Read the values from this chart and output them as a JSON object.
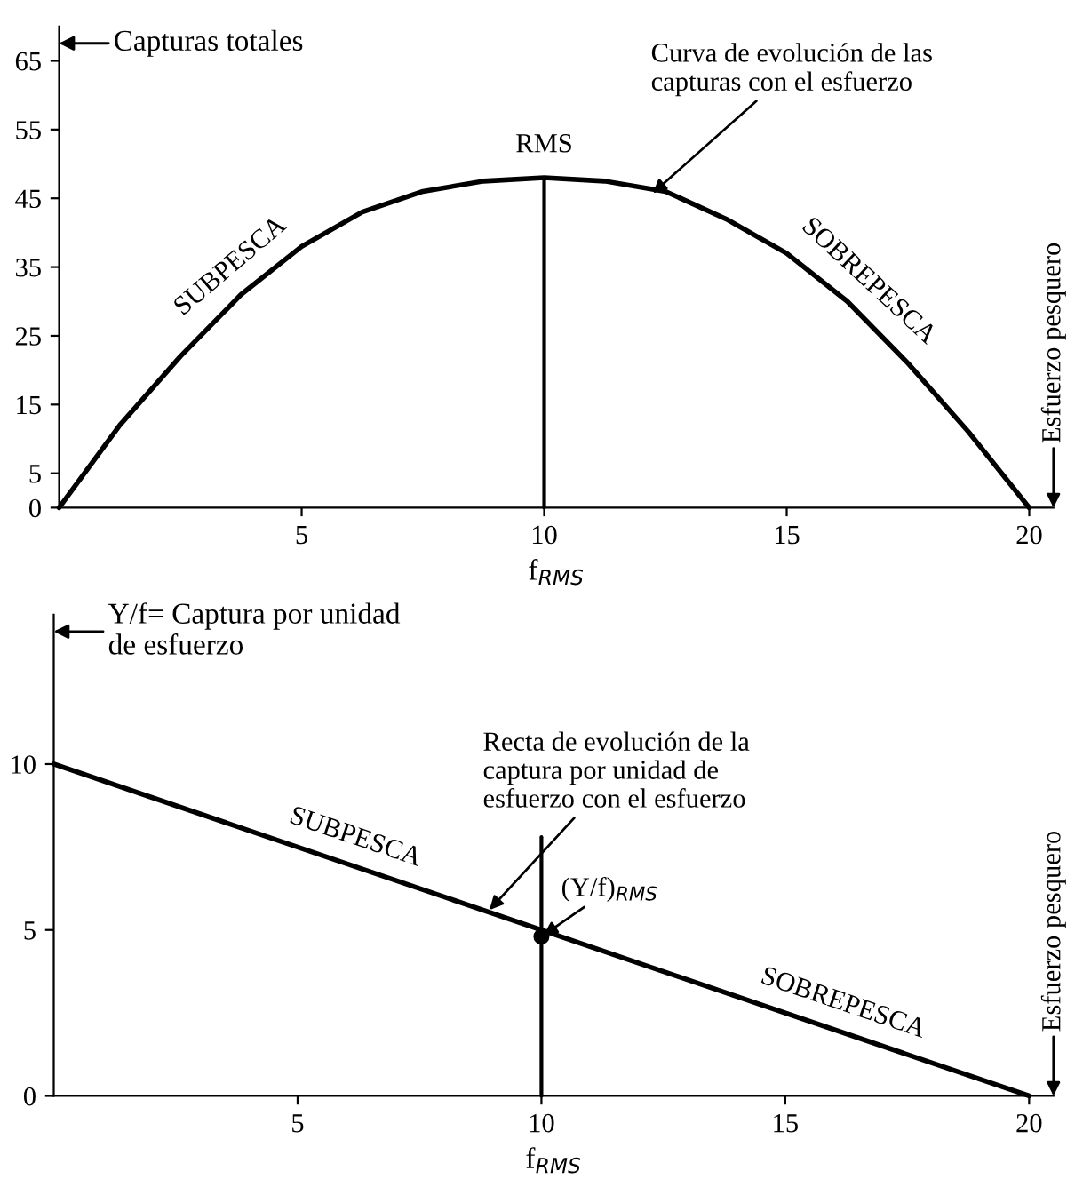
{
  "chart_data": [
    {
      "type": "line",
      "ylabel": "Capturas totales",
      "xlabel": "f$_{RMS}$",
      "series": [
        {
          "color": "#000000",
          "x": [
            0,
            1.25,
            2.5,
            3.75,
            5,
            6.25,
            7.5,
            8.75,
            10,
            11.25,
            12.5,
            13.75,
            15,
            16.25,
            17.5,
            18.75,
            20
          ],
          "values": [
            0,
            12,
            22,
            31,
            38,
            43,
            46,
            47.5,
            48,
            47.5,
            46,
            42,
            37,
            30,
            21,
            11,
            0
          ]
        },
        {
          "color": "#000000",
          "x": [
            10,
            10
          ],
          "values": [
            0,
            48
          ]
        }
      ],
      "xlim": [
        0,
        20.5
      ],
      "ylim": [
        0,
        70
      ],
      "xticks": [
        5,
        10,
        15,
        20
      ],
      "yticks": [
        0,
        5,
        15,
        25,
        35,
        45,
        55,
        65
      ],
      "marker": "none",
      "line_style": "solid",
      "grid": false,
      "legend": false,
      "annotations": [
        {
          "text": "RMS",
          "x": 10,
          "y": 48
        },
        {
          "text": "Curva de evolución de las\ncapturas con el esfuerzo",
          "x": 12.2,
          "y": 45.5
        },
        {
          "text": "SUBPESCA",
          "x": 3.9,
          "y": 32
        },
        {
          "text": "SOBREPESCA",
          "x": 16.3,
          "y": 30
        },
        "Esfuerzo pesquero"
      ]
    },
    {
      "type": "line",
      "ylabel": "Y/f= Captura por unidad\nde esfuerzo",
      "xlabel": "f$_{RMS}$",
      "series": [
        {
          "color": "#000000",
          "x": [
            0,
            20
          ],
          "values": [
            10,
            0
          ]
        },
        {
          "color": "#000000",
          "x": [
            10,
            10
          ],
          "values": [
            0,
            7.8
          ]
        },
        {
          "type": "scatter",
          "color": "#000000",
          "marker": "circle",
          "x": [
            10
          ],
          "values": [
            4.8
          ]
        }
      ],
      "xlim": [
        0,
        20.5
      ],
      "ylim": [
        0,
        14.5
      ],
      "xticks": [
        5,
        10,
        15,
        20
      ],
      "yticks": [
        0,
        5,
        10
      ],
      "marker": "none",
      "line_style": "solid",
      "grid": false,
      "legend": false,
      "annotations": [
        {
          "text": "Recta de evolución de la\ncaptura por unidad de\nesfuerzo con el esfuerzo",
          "x": 8.9,
          "y": 5.55
        },
        {
          "text": "(Y/f)$_{RMS}$",
          "x": 10,
          "y": 4.8
        },
        {
          "text": "SUBPESCA",
          "x": 6,
          "y": 7
        },
        {
          "text": "SOBREPESCA",
          "x": 16,
          "y": 2
        },
        "Esfuerzo pesquero"
      ]
    }
  ]
}
